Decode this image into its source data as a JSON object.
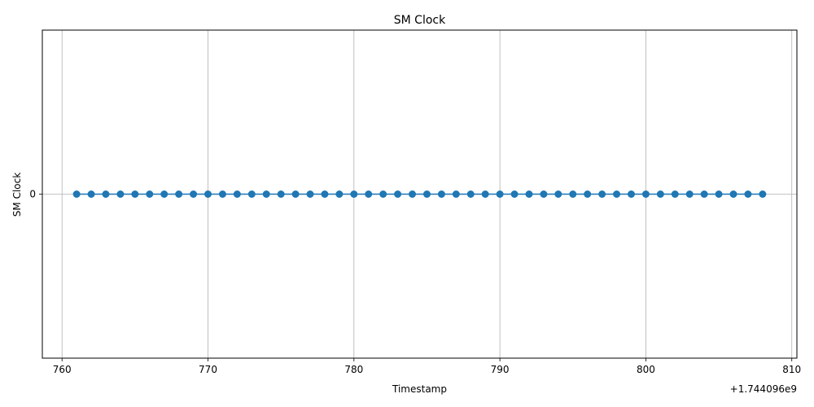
{
  "chart_data": {
    "type": "line",
    "title": "SM Clock",
    "xlabel": "Timestamp",
    "ylabel": "SM Clock",
    "x_offset_label": "+1.744096e9",
    "x": [
      761,
      762,
      763,
      764,
      765,
      766,
      767,
      768,
      769,
      770,
      771,
      772,
      773,
      774,
      775,
      776,
      777,
      778,
      779,
      780,
      781,
      782,
      783,
      784,
      785,
      786,
      787,
      788,
      789,
      790,
      791,
      792,
      793,
      794,
      795,
      796,
      797,
      798,
      799,
      800,
      801,
      802,
      803,
      804,
      805,
      806,
      807,
      808
    ],
    "y": [
      0,
      0,
      0,
      0,
      0,
      0,
      0,
      0,
      0,
      0,
      0,
      0,
      0,
      0,
      0,
      0,
      0,
      0,
      0,
      0,
      0,
      0,
      0,
      0,
      0,
      0,
      0,
      0,
      0,
      0,
      0,
      0,
      0,
      0,
      0,
      0,
      0,
      0,
      0,
      0,
      0,
      0,
      0,
      0,
      0,
      0,
      0,
      0
    ],
    "xlim": [
      758.65,
      810.35
    ],
    "ylim": [
      -0.11,
      0.11
    ],
    "xticks": [
      760,
      770,
      780,
      790,
      800,
      810
    ],
    "xtick_labels": [
      "760",
      "770",
      "780",
      "790",
      "800",
      "810"
    ],
    "yticks": [
      0
    ],
    "ytick_labels": [
      "0"
    ],
    "grid": true,
    "marker": "circle",
    "color": "#1f77b4"
  }
}
